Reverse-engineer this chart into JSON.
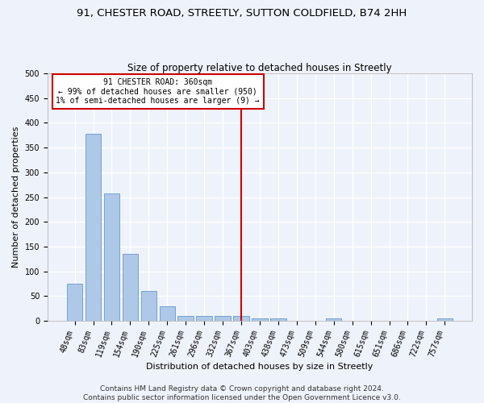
{
  "title": "91, CHESTER ROAD, STREETLY, SUTTON COLDFIELD, B74 2HH",
  "subtitle": "Size of property relative to detached houses in Streetly",
  "xlabel": "Distribution of detached houses by size in Streetly",
  "ylabel": "Number of detached properties",
  "categories": [
    "48sqm",
    "83sqm",
    "119sqm",
    "154sqm",
    "190sqm",
    "225sqm",
    "261sqm",
    "296sqm",
    "332sqm",
    "367sqm",
    "403sqm",
    "438sqm",
    "473sqm",
    "509sqm",
    "544sqm",
    "580sqm",
    "615sqm",
    "651sqm",
    "686sqm",
    "722sqm",
    "757sqm"
  ],
  "values": [
    75,
    378,
    258,
    135,
    60,
    30,
    10,
    10,
    10,
    10,
    5,
    5,
    0,
    0,
    5,
    0,
    0,
    0,
    0,
    0,
    5
  ],
  "bar_color": "#aec8e8",
  "bar_edge_color": "#6699cc",
  "vline_index": 9,
  "vline_color": "#cc0000",
  "annotation_text": "91 CHESTER ROAD: 360sqm\n← 99% of detached houses are smaller (950)\n1% of semi-detached houses are larger (9) →",
  "annotation_box_color": "#ffffff",
  "annotation_box_edge": "#cc0000",
  "ylim": [
    0,
    500
  ],
  "yticks": [
    0,
    50,
    100,
    150,
    200,
    250,
    300,
    350,
    400,
    450,
    500
  ],
  "footer": "Contains HM Land Registry data © Crown copyright and database right 2024.\nContains public sector information licensed under the Open Government Licence v3.0.",
  "bg_color": "#eef2fa",
  "plot_bg_color": "#eef2fa",
  "grid_color": "#ffffff",
  "title_fontsize": 9.5,
  "subtitle_fontsize": 8.5,
  "axis_label_fontsize": 8,
  "tick_fontsize": 7,
  "footer_fontsize": 6.5
}
